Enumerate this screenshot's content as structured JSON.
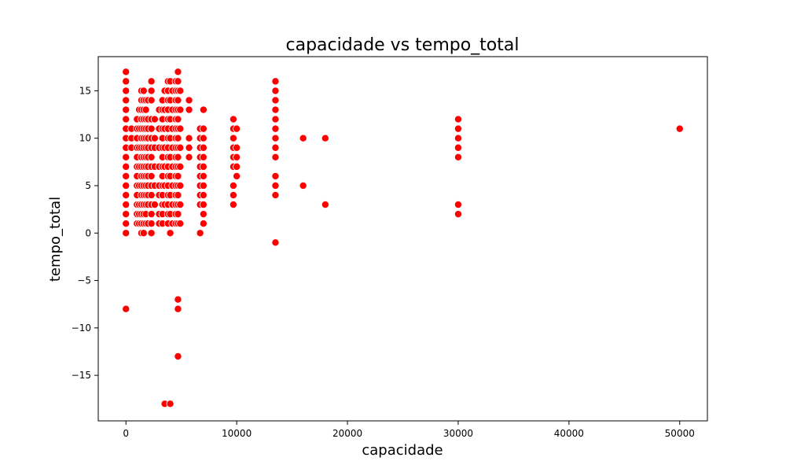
{
  "chart_data": {
    "type": "scatter",
    "title": "capacidade vs tempo_total",
    "xlabel": "capacidade",
    "ylabel": "tempo_total",
    "xlim": [
      -2500,
      52500
    ],
    "ylim": [
      -19.8,
      18.6
    ],
    "x_ticks": [
      0,
      10000,
      20000,
      30000,
      40000,
      50000
    ],
    "y_ticks": [
      -15,
      -10,
      -5,
      0,
      5,
      10,
      15
    ],
    "x_tick_labels": [
      "0",
      "10000",
      "20000",
      "30000",
      "40000",
      "50000"
    ],
    "y_tick_labels": [
      "−15",
      "−10",
      "−5",
      "0",
      "5",
      "10",
      "15"
    ],
    "grid": false,
    "legend": "none",
    "point_color": "#ff0000",
    "point_edge_color": "#ffffff",
    "series": [
      {
        "points": [
          [
            0,
            17
          ],
          [
            0,
            16
          ],
          [
            0,
            15
          ],
          [
            0,
            14
          ],
          [
            0,
            13
          ],
          [
            0,
            12
          ],
          [
            0,
            11
          ],
          [
            0,
            10
          ],
          [
            0,
            9
          ],
          [
            0,
            8
          ],
          [
            0,
            7
          ],
          [
            0,
            6
          ],
          [
            0,
            5
          ],
          [
            0,
            4
          ],
          [
            0,
            3
          ],
          [
            0,
            2
          ],
          [
            0,
            1
          ],
          [
            0,
            0
          ],
          [
            0,
            -8
          ],
          [
            500,
            11
          ],
          [
            500,
            10
          ],
          [
            500,
            9
          ],
          [
            1000,
            12
          ],
          [
            1000,
            11
          ],
          [
            1000,
            10
          ],
          [
            1000,
            9
          ],
          [
            1000,
            8
          ],
          [
            1000,
            7
          ],
          [
            1000,
            6
          ],
          [
            1000,
            5
          ],
          [
            1000,
            4
          ],
          [
            1000,
            3
          ],
          [
            1000,
            2
          ],
          [
            1000,
            1
          ],
          [
            1200,
            13
          ],
          [
            1200,
            11
          ],
          [
            1200,
            9
          ],
          [
            1200,
            7
          ],
          [
            1200,
            5
          ],
          [
            1200,
            3
          ],
          [
            1200,
            2
          ],
          [
            1200,
            1
          ],
          [
            1400,
            15
          ],
          [
            1400,
            14
          ],
          [
            1400,
            13
          ],
          [
            1400,
            12
          ],
          [
            1400,
            11
          ],
          [
            1400,
            10
          ],
          [
            1400,
            9
          ],
          [
            1400,
            8
          ],
          [
            1400,
            7
          ],
          [
            1400,
            6
          ],
          [
            1400,
            5
          ],
          [
            1400,
            4
          ],
          [
            1400,
            3
          ],
          [
            1400,
            2
          ],
          [
            1400,
            1
          ],
          [
            1400,
            0
          ],
          [
            1600,
            15
          ],
          [
            1600,
            14
          ],
          [
            1600,
            13
          ],
          [
            1600,
            12
          ],
          [
            1600,
            11
          ],
          [
            1600,
            10
          ],
          [
            1600,
            9
          ],
          [
            1600,
            8
          ],
          [
            1600,
            7
          ],
          [
            1600,
            6
          ],
          [
            1600,
            5
          ],
          [
            1600,
            4
          ],
          [
            1600,
            3
          ],
          [
            1600,
            2
          ],
          [
            1600,
            1
          ],
          [
            1600,
            0
          ],
          [
            1800,
            14
          ],
          [
            1800,
            13
          ],
          [
            1800,
            12
          ],
          [
            1800,
            11
          ],
          [
            1800,
            10
          ],
          [
            1800,
            9
          ],
          [
            1800,
            8
          ],
          [
            1800,
            7
          ],
          [
            1800,
            6
          ],
          [
            1800,
            5
          ],
          [
            1800,
            4
          ],
          [
            1800,
            3
          ],
          [
            1800,
            2
          ],
          [
            1800,
            1
          ],
          [
            2000,
            14
          ],
          [
            2000,
            12
          ],
          [
            2000,
            11
          ],
          [
            2000,
            10
          ],
          [
            2000,
            9
          ],
          [
            2000,
            8
          ],
          [
            2000,
            7
          ],
          [
            2000,
            6
          ],
          [
            2000,
            5
          ],
          [
            2000,
            4
          ],
          [
            2000,
            3
          ],
          [
            2000,
            1
          ],
          [
            2300,
            16
          ],
          [
            2300,
            15
          ],
          [
            2300,
            14
          ],
          [
            2300,
            12
          ],
          [
            2300,
            11
          ],
          [
            2300,
            10
          ],
          [
            2300,
            9
          ],
          [
            2300,
            8
          ],
          [
            2300,
            7
          ],
          [
            2300,
            6
          ],
          [
            2300,
            5
          ],
          [
            2300,
            4
          ],
          [
            2300,
            3
          ],
          [
            2300,
            2
          ],
          [
            2300,
            1
          ],
          [
            2300,
            0
          ],
          [
            2600,
            12
          ],
          [
            2600,
            10
          ],
          [
            2600,
            9
          ],
          [
            2600,
            7
          ],
          [
            2600,
            5
          ],
          [
            2600,
            3
          ],
          [
            3000,
            13
          ],
          [
            3000,
            11
          ],
          [
            3000,
            9
          ],
          [
            3000,
            7
          ],
          [
            3000,
            5
          ],
          [
            3000,
            4
          ],
          [
            3000,
            2
          ],
          [
            3000,
            1
          ],
          [
            3300,
            14
          ],
          [
            3300,
            13
          ],
          [
            3300,
            12
          ],
          [
            3300,
            11
          ],
          [
            3300,
            10
          ],
          [
            3300,
            9
          ],
          [
            3300,
            8
          ],
          [
            3300,
            7
          ],
          [
            3300,
            6
          ],
          [
            3300,
            5
          ],
          [
            3300,
            4
          ],
          [
            3300,
            3
          ],
          [
            3300,
            2
          ],
          [
            3300,
            1
          ],
          [
            3500,
            15
          ],
          [
            3500,
            13
          ],
          [
            3500,
            11
          ],
          [
            3500,
            9
          ],
          [
            3500,
            7
          ],
          [
            3500,
            5
          ],
          [
            3500,
            3
          ],
          [
            3500,
            -18
          ],
          [
            3800,
            16
          ],
          [
            3800,
            15
          ],
          [
            3800,
            14
          ],
          [
            3800,
            13
          ],
          [
            3800,
            12
          ],
          [
            3800,
            11
          ],
          [
            3800,
            10
          ],
          [
            3800,
            9
          ],
          [
            3800,
            8
          ],
          [
            3800,
            7
          ],
          [
            3800,
            6
          ],
          [
            3800,
            5
          ],
          [
            3800,
            4
          ],
          [
            3800,
            3
          ],
          [
            3800,
            2
          ],
          [
            3800,
            1
          ],
          [
            4000,
            16
          ],
          [
            4000,
            14
          ],
          [
            4000,
            12
          ],
          [
            4000,
            10
          ],
          [
            4000,
            8
          ],
          [
            4000,
            6
          ],
          [
            4000,
            4
          ],
          [
            4000,
            2
          ],
          [
            4000,
            0
          ],
          [
            4000,
            -18
          ],
          [
            4200,
            15
          ],
          [
            4200,
            13
          ],
          [
            4200,
            11
          ],
          [
            4200,
            9
          ],
          [
            4200,
            7
          ],
          [
            4200,
            5
          ],
          [
            4200,
            3
          ],
          [
            4200,
            1
          ],
          [
            4500,
            16
          ],
          [
            4500,
            15
          ],
          [
            4500,
            14
          ],
          [
            4500,
            13
          ],
          [
            4500,
            12
          ],
          [
            4500,
            11
          ],
          [
            4500,
            10
          ],
          [
            4500,
            9
          ],
          [
            4500,
            8
          ],
          [
            4500,
            7
          ],
          [
            4500,
            6
          ],
          [
            4500,
            5
          ],
          [
            4500,
            4
          ],
          [
            4500,
            3
          ],
          [
            4500,
            2
          ],
          [
            4500,
            1
          ],
          [
            4700,
            17
          ],
          [
            4700,
            16
          ],
          [
            4700,
            15
          ],
          [
            4700,
            14
          ],
          [
            4700,
            13
          ],
          [
            4700,
            12
          ],
          [
            4700,
            11
          ],
          [
            4700,
            10
          ],
          [
            4700,
            9
          ],
          [
            4700,
            8
          ],
          [
            4700,
            7
          ],
          [
            4700,
            6
          ],
          [
            4700,
            5
          ],
          [
            4700,
            4
          ],
          [
            4700,
            3
          ],
          [
            4700,
            2
          ],
          [
            4700,
            1
          ],
          [
            4700,
            -7
          ],
          [
            4700,
            -8
          ],
          [
            4700,
            -13
          ],
          [
            4900,
            15
          ],
          [
            4900,
            13
          ],
          [
            4900,
            11
          ],
          [
            4900,
            9
          ],
          [
            4900,
            7
          ],
          [
            4900,
            5
          ],
          [
            4900,
            3
          ],
          [
            4900,
            1
          ],
          [
            5700,
            14
          ],
          [
            5700,
            13
          ],
          [
            5700,
            10
          ],
          [
            5700,
            9
          ],
          [
            5700,
            8
          ],
          [
            6700,
            11
          ],
          [
            6700,
            10
          ],
          [
            6700,
            9
          ],
          [
            6700,
            8
          ],
          [
            6700,
            7
          ],
          [
            6700,
            6
          ],
          [
            6700,
            5
          ],
          [
            6700,
            4
          ],
          [
            6700,
            3
          ],
          [
            6700,
            0
          ],
          [
            7000,
            13
          ],
          [
            7000,
            11
          ],
          [
            7000,
            10
          ],
          [
            7000,
            9
          ],
          [
            7000,
            8
          ],
          [
            7000,
            7
          ],
          [
            7000,
            6
          ],
          [
            7000,
            5
          ],
          [
            7000,
            4
          ],
          [
            7000,
            3
          ],
          [
            7000,
            2
          ],
          [
            7000,
            1
          ],
          [
            9700,
            12
          ],
          [
            9700,
            11
          ],
          [
            9700,
            10
          ],
          [
            9700,
            9
          ],
          [
            9700,
            8
          ],
          [
            9700,
            7
          ],
          [
            9700,
            5
          ],
          [
            9700,
            4
          ],
          [
            9700,
            3
          ],
          [
            10000,
            11
          ],
          [
            10000,
            9
          ],
          [
            10000,
            8
          ],
          [
            10000,
            7
          ],
          [
            10000,
            6
          ],
          [
            13500,
            16
          ],
          [
            13500,
            15
          ],
          [
            13500,
            14
          ],
          [
            13500,
            13
          ],
          [
            13500,
            12
          ],
          [
            13500,
            11
          ],
          [
            13500,
            10
          ],
          [
            13500,
            9
          ],
          [
            13500,
            8
          ],
          [
            13500,
            6
          ],
          [
            13500,
            5
          ],
          [
            13500,
            4
          ],
          [
            13500,
            -1
          ],
          [
            16000,
            10
          ],
          [
            16000,
            5
          ],
          [
            18000,
            10
          ],
          [
            18000,
            3
          ],
          [
            30000,
            12
          ],
          [
            30000,
            11
          ],
          [
            30000,
            10
          ],
          [
            30000,
            9
          ],
          [
            30000,
            8
          ],
          [
            30000,
            3
          ],
          [
            30000,
            2
          ],
          [
            50000,
            11
          ]
        ]
      }
    ]
  }
}
